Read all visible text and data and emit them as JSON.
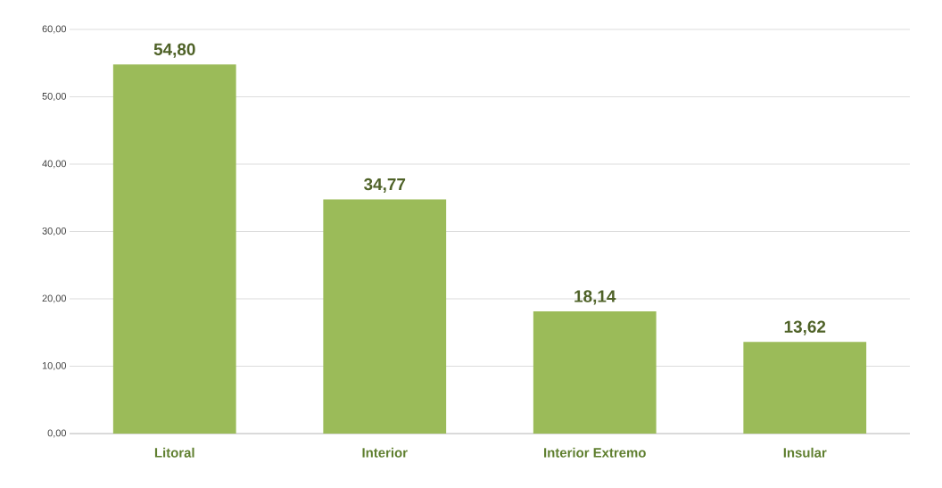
{
  "chart_data": {
    "type": "bar",
    "categories": [
      "Litoral",
      "Interior",
      "Interior Extremo",
      "Insular"
    ],
    "values": [
      54.8,
      34.77,
      18.14,
      13.62
    ],
    "value_labels": [
      "54,80",
      "34,77",
      "18,14",
      "13,62"
    ],
    "color": "#9bbb59",
    "ylim": [
      0,
      60
    ],
    "yticks": [
      {
        "value": 0,
        "label": "0,00"
      },
      {
        "value": 10,
        "label": "10,00"
      },
      {
        "value": 20,
        "label": "20,00"
      },
      {
        "value": 30,
        "label": "30,00"
      },
      {
        "value": 40,
        "label": "40,00"
      },
      {
        "value": 50,
        "label": "50,00"
      },
      {
        "value": 60,
        "label": "60,00"
      }
    ],
    "grid": "y"
  }
}
